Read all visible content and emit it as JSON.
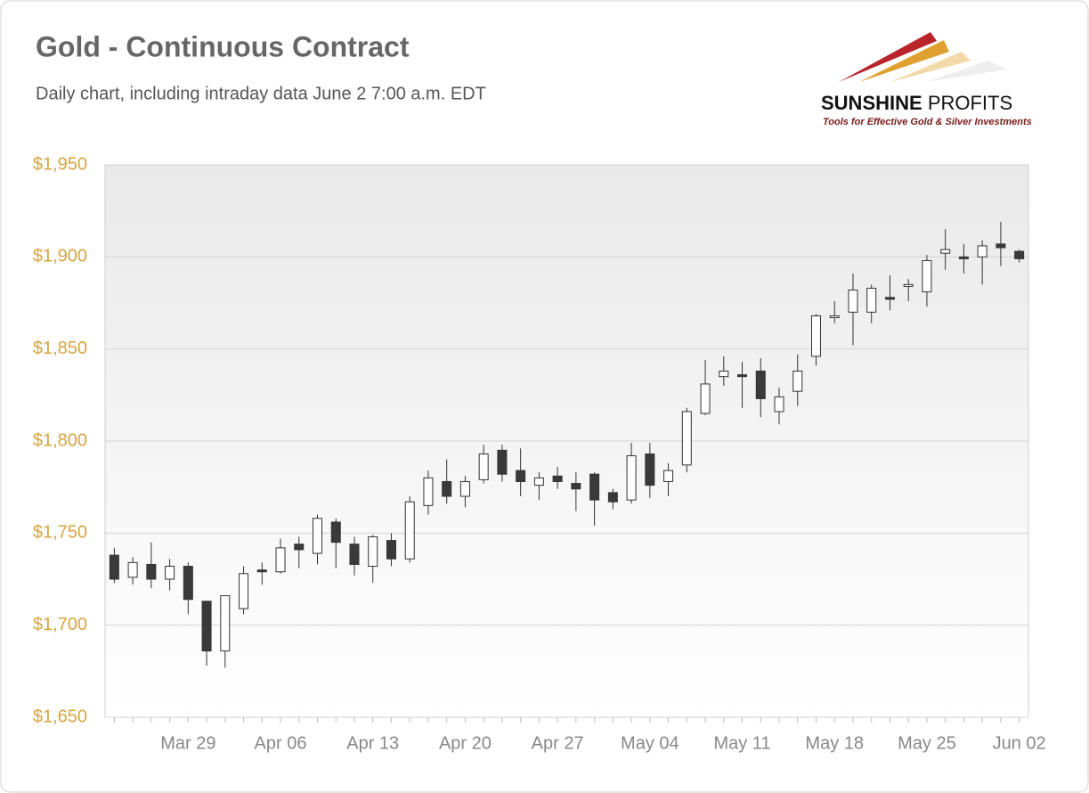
{
  "chart_data": {
    "type": "candlestick",
    "title": "Gold - Continuous Contract",
    "subtitle": "Daily chart, including intraday data June 2 7:00 a.m. EDT",
    "logo": {
      "name_bold": "SUNSHINE",
      "name_rest": "PROFITS",
      "tagline": "Tools for Effective Gold & Silver Investments"
    },
    "categories": [
      null,
      null,
      null,
      null,
      "Mar 29",
      null,
      null,
      null,
      null,
      "Apr 06",
      null,
      null,
      null,
      null,
      "Apr 13",
      null,
      null,
      null,
      null,
      "Apr 20",
      null,
      null,
      null,
      null,
      "Apr 27",
      null,
      null,
      null,
      null,
      "May 04",
      null,
      null,
      null,
      null,
      "May 11",
      null,
      null,
      null,
      null,
      "May 18",
      null,
      null,
      null,
      null,
      "May 25",
      null,
      null,
      null,
      null,
      "Jun 02"
    ],
    "open": [
      1738,
      1726,
      1733,
      1725,
      1732,
      1713,
      1686,
      1709,
      1730,
      1729,
      1744,
      1739,
      1756,
      1744,
      1732,
      1746,
      1736,
      1765,
      1778,
      1770,
      1779,
      1795,
      1784,
      1776,
      1781,
      1777,
      1782,
      1772,
      1768,
      1793,
      1778,
      1787,
      1815,
      1835,
      1836,
      1838,
      1816,
      1827,
      1846,
      1867,
      1870,
      1870,
      1878,
      1884,
      1881,
      1902,
      1900,
      1900,
      1907,
      1903
    ],
    "high": [
      1742,
      1737,
      1745,
      1736,
      1734,
      1713,
      1716,
      1732,
      1734,
      1747,
      1748,
      1760,
      1758,
      1748,
      1749,
      1750,
      1770,
      1784,
      1790,
      1781,
      1798,
      1798,
      1796,
      1783,
      1786,
      1783,
      1783,
      1774,
      1799,
      1799,
      1788,
      1818,
      1844,
      1846,
      1843,
      1845,
      1829,
      1847,
      1869,
      1876,
      1891,
      1885,
      1890,
      1888,
      1901,
      1915,
      1907,
      1909,
      1919,
      1904
    ],
    "low": [
      1723,
      1722,
      1720,
      1719,
      1706,
      1678,
      1677,
      1706,
      1722,
      1728,
      1731,
      1733,
      1731,
      1727,
      1723,
      1732,
      1734,
      1760,
      1766,
      1764,
      1777,
      1778,
      1770,
      1768,
      1774,
      1762,
      1754,
      1763,
      1766,
      1769,
      1770,
      1783,
      1814,
      1830,
      1818,
      1813,
      1809,
      1819,
      1841,
      1864,
      1852,
      1864,
      1871,
      1876,
      1873,
      1893,
      1891,
      1885,
      1895,
      1897
    ],
    "close": [
      1725,
      1734,
      1725,
      1732,
      1714,
      1686,
      1716,
      1728,
      1729,
      1742,
      1741,
      1758,
      1745,
      1733,
      1748,
      1736,
      1767,
      1780,
      1770,
      1778,
      1793,
      1782,
      1778,
      1780,
      1778,
      1774,
      1768,
      1767,
      1792,
      1776,
      1784,
      1816,
      1831,
      1838,
      1835,
      1823,
      1824,
      1838,
      1868,
      1868,
      1882,
      1883,
      1877,
      1885,
      1898,
      1904,
      1899,
      1906,
      1905,
      1899
    ],
    "up_color": "#ffffff",
    "down_color": "#3a3a3a",
    "outline_color": "#333333",
    "ylim": [
      1650,
      1950
    ],
    "yticks": [
      {
        "value": 1650,
        "label": "$1,650"
      },
      {
        "value": 1700,
        "label": "$1,700"
      },
      {
        "value": 1750,
        "label": "$1,750"
      },
      {
        "value": 1800,
        "label": "$1,800"
      },
      {
        "value": 1850,
        "label": "$1,850"
      },
      {
        "value": 1900,
        "label": "$1,900"
      },
      {
        "value": 1950,
        "label": "$1,950"
      }
    ],
    "grid": true
  }
}
